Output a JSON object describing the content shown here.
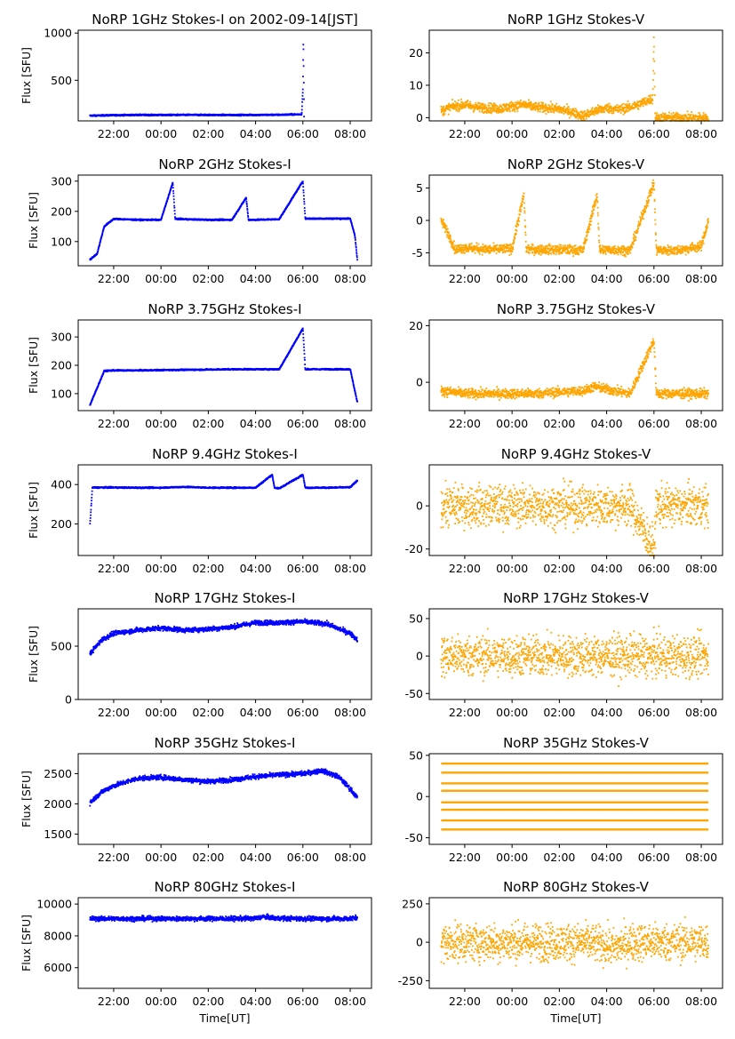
{
  "figure": {
    "time_ticks": [
      "22:00",
      "00:00",
      "02:00",
      "04:00",
      "06:00",
      "08:00"
    ],
    "xlabel": "Time[UT]",
    "ylabel": "Flux [SFU]",
    "colors": {
      "stokes_i": "#0000ff",
      "stokes_v": "#ffa500"
    }
  },
  "chart_data": [
    {
      "type": "scatter",
      "title": "NoRP 1GHz Stokes-I on 2002-09-14[JST]",
      "xlabel": "",
      "ylabel": "Flux [SFU]",
      "x_range_hours_ut": [
        20.5,
        32.9
      ],
      "ylim": [
        70,
        1030
      ],
      "yticks": [
        500,
        1000
      ],
      "series": [
        {
          "values": [
            [
              21.0,
              125
            ],
            [
              22,
              130
            ],
            [
              23,
              133
            ],
            [
              24,
              132
            ],
            [
              25,
              133
            ],
            [
              26,
              133
            ],
            [
              27,
              132
            ],
            [
              28,
              133
            ],
            [
              29,
              134
            ],
            [
              29.95,
              140
            ],
            [
              30.0,
              420
            ],
            [
              30.02,
              940
            ],
            [
              30.05,
              120
            ]
          ]
        }
      ]
    },
    {
      "type": "scatter",
      "title": "NoRP 1GHz Stokes-V",
      "xlabel": "",
      "ylabel": "",
      "x_range_hours_ut": [
        20.5,
        32.9
      ],
      "ylim": [
        -1,
        27
      ],
      "yticks": [
        0,
        10,
        20
      ],
      "series": [
        {
          "values": [
            [
              21.0,
              2
            ],
            [
              21.5,
              3.5
            ],
            [
              22,
              4
            ],
            [
              22.5,
              3.2
            ],
            [
              23,
              3
            ],
            [
              23.5,
              2.8
            ],
            [
              24,
              3.5
            ],
            [
              24.5,
              4
            ],
            [
              25,
              3.2
            ],
            [
              25.5,
              3
            ],
            [
              26,
              2.6
            ],
            [
              26.5,
              1.8
            ],
            [
              27,
              0.5
            ],
            [
              27.5,
              2
            ],
            [
              28,
              3
            ],
            [
              28.5,
              2.5
            ],
            [
              29,
              3.2
            ],
            [
              29.5,
              4.5
            ],
            [
              29.95,
              6
            ],
            [
              30.0,
              25
            ],
            [
              30.05,
              0
            ],
            [
              31,
              0
            ],
            [
              32.3,
              0
            ]
          ]
        }
      ]
    },
    {
      "type": "scatter",
      "title": "NoRP 2GHz Stokes-I",
      "xlabel": "",
      "ylabel": "Flux [SFU]",
      "x_range_hours_ut": [
        20.5,
        32.9
      ],
      "ylim": [
        20,
        320
      ],
      "yticks": [
        100,
        200,
        300
      ],
      "series": [
        {
          "values": [
            [
              21.0,
              40
            ],
            [
              21.3,
              60
            ],
            [
              21.6,
              150
            ],
            [
              22,
              175
            ],
            [
              23,
              172
            ],
            [
              24,
              172
            ],
            [
              24.5,
              295
            ],
            [
              24.6,
              175
            ],
            [
              25,
              174
            ],
            [
              26,
              172
            ],
            [
              27,
              172
            ],
            [
              27.6,
              245
            ],
            [
              27.7,
              172
            ],
            [
              28,
              172
            ],
            [
              29,
              174
            ],
            [
              30,
              300
            ],
            [
              30.1,
              176
            ],
            [
              31,
              176
            ],
            [
              32,
              176
            ],
            [
              32.2,
              120
            ],
            [
              32.3,
              40
            ]
          ]
        }
      ]
    },
    {
      "type": "scatter",
      "title": "NoRP 2GHz Stokes-V",
      "xlabel": "",
      "ylabel": "",
      "x_range_hours_ut": [
        20.5,
        32.9
      ],
      "ylim": [
        -7,
        7
      ],
      "yticks": [
        -5,
        0,
        5
      ],
      "series": [
        {
          "values": [
            [
              21.0,
              0
            ],
            [
              21.3,
              -2
            ],
            [
              21.6,
              -4.5
            ],
            [
              22,
              -4.2
            ],
            [
              23,
              -4.5
            ],
            [
              24,
              -4.4
            ],
            [
              24.5,
              4
            ],
            [
              24.6,
              -4.4
            ],
            [
              25,
              -4.5
            ],
            [
              26,
              -4.5
            ],
            [
              27,
              -4.6
            ],
            [
              27.6,
              4
            ],
            [
              27.7,
              -4.6
            ],
            [
              28,
              -4.5
            ],
            [
              29,
              -4.6
            ],
            [
              30,
              5.8
            ],
            [
              30.1,
              -4.6
            ],
            [
              31,
              -4.6
            ],
            [
              32,
              -4
            ],
            [
              32.3,
              0
            ]
          ]
        }
      ]
    },
    {
      "type": "scatter",
      "title": "NoRP 3.75GHz Stokes-I",
      "xlabel": "",
      "ylabel": "Flux [SFU]",
      "x_range_hours_ut": [
        20.5,
        32.9
      ],
      "ylim": [
        40,
        360
      ],
      "yticks": [
        100,
        200,
        300
      ],
      "series": [
        {
          "values": [
            [
              21.0,
              60
            ],
            [
              21.3,
              120
            ],
            [
              21.6,
              180
            ],
            [
              22,
              182
            ],
            [
              23,
              182
            ],
            [
              24,
              183
            ],
            [
              25,
              184
            ],
            [
              26,
              185
            ],
            [
              27,
              186
            ],
            [
              28,
              186
            ],
            [
              29,
              186
            ],
            [
              30,
              330
            ],
            [
              30.1,
              186
            ],
            [
              31,
              186
            ],
            [
              32,
              186
            ],
            [
              32.3,
              70
            ]
          ]
        }
      ]
    },
    {
      "type": "scatter",
      "title": "NoRP 3.75GHz Stokes-V",
      "xlabel": "",
      "ylabel": "",
      "x_range_hours_ut": [
        20.5,
        32.9
      ],
      "ylim": [
        -10,
        22
      ],
      "yticks": [
        0,
        20
      ],
      "series": [
        {
          "values": [
            [
              21.0,
              -3
            ],
            [
              22,
              -4
            ],
            [
              23,
              -4
            ],
            [
              24,
              -4
            ],
            [
              25,
              -4
            ],
            [
              26,
              -3.5
            ],
            [
              27,
              -3
            ],
            [
              27.5,
              -1.5
            ],
            [
              28,
              -2.5
            ],
            [
              29,
              -4
            ],
            [
              30,
              15
            ],
            [
              30.1,
              -4
            ],
            [
              31,
              -4
            ],
            [
              32,
              -4
            ],
            [
              32.3,
              -4
            ]
          ]
        }
      ]
    },
    {
      "type": "scatter",
      "title": "NoRP 9.4GHz Stokes-I",
      "xlabel": "",
      "ylabel": "Flux [SFU]",
      "x_range_hours_ut": [
        20.5,
        32.9
      ],
      "ylim": [
        40,
        500
      ],
      "yticks": [
        200,
        400
      ],
      "series": [
        {
          "values": [
            [
              21.0,
              200
            ],
            [
              21.1,
              385
            ],
            [
              22,
              385
            ],
            [
              23,
              384
            ],
            [
              24,
              384
            ],
            [
              25,
              388
            ],
            [
              26,
              384
            ],
            [
              27,
              384
            ],
            [
              28,
              384
            ],
            [
              28.7,
              450
            ],
            [
              28.8,
              384
            ],
            [
              29,
              380
            ],
            [
              30,
              450
            ],
            [
              30.1,
              384
            ],
            [
              31,
              384
            ],
            [
              32,
              386
            ],
            [
              32.3,
              420
            ]
          ]
        }
      ]
    },
    {
      "type": "scatter",
      "title": "NoRP 9.4GHz Stokes-V",
      "xlabel": "",
      "ylabel": "",
      "x_range_hours_ut": [
        20.5,
        32.9
      ],
      "ylim": [
        -23,
        19
      ],
      "yticks": [
        -20,
        0
      ],
      "series": [
        {
          "values": [
            [
              21.0,
              0
            ],
            [
              22,
              0
            ],
            [
              23,
              0
            ],
            [
              24,
              0
            ],
            [
              25,
              0
            ],
            [
              26,
              0
            ],
            [
              27,
              0
            ],
            [
              28,
              0
            ],
            [
              29,
              0
            ],
            [
              30,
              -20
            ],
            [
              30.1,
              0
            ],
            [
              31,
              0
            ],
            [
              32,
              0
            ],
            [
              32.3,
              0
            ]
          ]
        }
      ]
    },
    {
      "type": "scatter",
      "title": "NoRP 17GHz Stokes-I",
      "xlabel": "",
      "ylabel": "Flux [SFU]",
      "x_range_hours_ut": [
        20.5,
        32.9
      ],
      "ylim": [
        0,
        850
      ],
      "yticks": [
        0,
        500
      ],
      "series": [
        {
          "values": [
            [
              21.0,
              430
            ],
            [
              21.5,
              560
            ],
            [
              22,
              620
            ],
            [
              23,
              650
            ],
            [
              24,
              670
            ],
            [
              25,
              650
            ],
            [
              26,
              660
            ],
            [
              27,
              680
            ],
            [
              28,
              720
            ],
            [
              29,
              720
            ],
            [
              30,
              730
            ],
            [
              31,
              710
            ],
            [
              32,
              620
            ],
            [
              32.3,
              560
            ]
          ]
        }
      ]
    },
    {
      "type": "scatter",
      "title": "NoRP 17GHz Stokes-V",
      "xlabel": "",
      "ylabel": "",
      "x_range_hours_ut": [
        20.5,
        32.9
      ],
      "ylim": [
        -58,
        63
      ],
      "yticks": [
        -50,
        0,
        50
      ],
      "series": [
        {
          "values": [
            [
              21.0,
              0
            ],
            [
              22,
              0
            ],
            [
              23,
              0
            ],
            [
              24,
              0
            ],
            [
              25,
              0
            ],
            [
              26,
              0
            ],
            [
              27,
              0
            ],
            [
              28,
              0
            ],
            [
              29,
              0
            ],
            [
              30,
              0
            ],
            [
              31,
              0
            ],
            [
              32,
              0
            ],
            [
              32.3,
              0
            ]
          ]
        }
      ]
    },
    {
      "type": "scatter",
      "title": "NoRP 35GHz Stokes-I",
      "xlabel": "",
      "ylabel": "Flux [SFU]",
      "x_range_hours_ut": [
        20.5,
        32.9
      ],
      "ylim": [
        1330,
        2830
      ],
      "yticks": [
        1500,
        2000,
        2500
      ],
      "series": [
        {
          "values": [
            [
              21.0,
              2020
            ],
            [
              21.5,
              2200
            ],
            [
              22,
              2300
            ],
            [
              23,
              2420
            ],
            [
              24,
              2440
            ],
            [
              25,
              2400
            ],
            [
              26,
              2370
            ],
            [
              27,
              2400
            ],
            [
              28,
              2450
            ],
            [
              29,
              2480
            ],
            [
              30,
              2500
            ],
            [
              30.8,
              2550
            ],
            [
              31.5,
              2450
            ],
            [
              32,
              2250
            ],
            [
              32.3,
              2100
            ]
          ]
        }
      ]
    },
    {
      "type": "scatter",
      "title": "NoRP 35GHz Stokes-V",
      "xlabel": "",
      "ylabel": "",
      "x_range_hours_ut": [
        20.5,
        32.9
      ],
      "ylim": [
        -58,
        52
      ],
      "yticks": [
        -50,
        0,
        50
      ],
      "series": [
        {
          "values": [
            [
              21.0,
              0
            ],
            [
              32.3,
              0
            ]
          ]
        }
      ]
    },
    {
      "type": "scatter",
      "title": "NoRP 80GHz Stokes-I",
      "xlabel": "Time[UT]",
      "ylabel": "Flux [SFU]",
      "x_range_hours_ut": [
        20.5,
        32.9
      ],
      "ylim": [
        4700,
        10400
      ],
      "yticks": [
        6000,
        8000,
        10000
      ],
      "series": [
        {
          "values": [
            [
              21.0,
              9080
            ],
            [
              22,
              9080
            ],
            [
              23,
              9080
            ],
            [
              24,
              9080
            ],
            [
              25,
              9080
            ],
            [
              26,
              9080
            ],
            [
              27,
              9080
            ],
            [
              28,
              9100
            ],
            [
              28.3,
              9200
            ],
            [
              29,
              9100
            ],
            [
              30,
              9080
            ],
            [
              31,
              9080
            ],
            [
              32,
              9080
            ],
            [
              32.3,
              9150
            ]
          ]
        }
      ]
    },
    {
      "type": "scatter",
      "title": "NoRP 80GHz Stokes-V",
      "xlabel": "Time[UT]",
      "ylabel": "",
      "x_range_hours_ut": [
        20.5,
        32.9
      ],
      "ylim": [
        -300,
        290
      ],
      "yticks": [
        -250,
        0,
        250
      ],
      "series": [
        {
          "values": [
            [
              21.0,
              0
            ],
            [
              22,
              0
            ],
            [
              23,
              0
            ],
            [
              24,
              0
            ],
            [
              25,
              0
            ],
            [
              26,
              0
            ],
            [
              27,
              0
            ],
            [
              28,
              -20
            ],
            [
              28.3,
              -40
            ],
            [
              29,
              0
            ],
            [
              30,
              0
            ],
            [
              31,
              0
            ],
            [
              32,
              0
            ],
            [
              32.3,
              0
            ]
          ]
        }
      ]
    }
  ]
}
